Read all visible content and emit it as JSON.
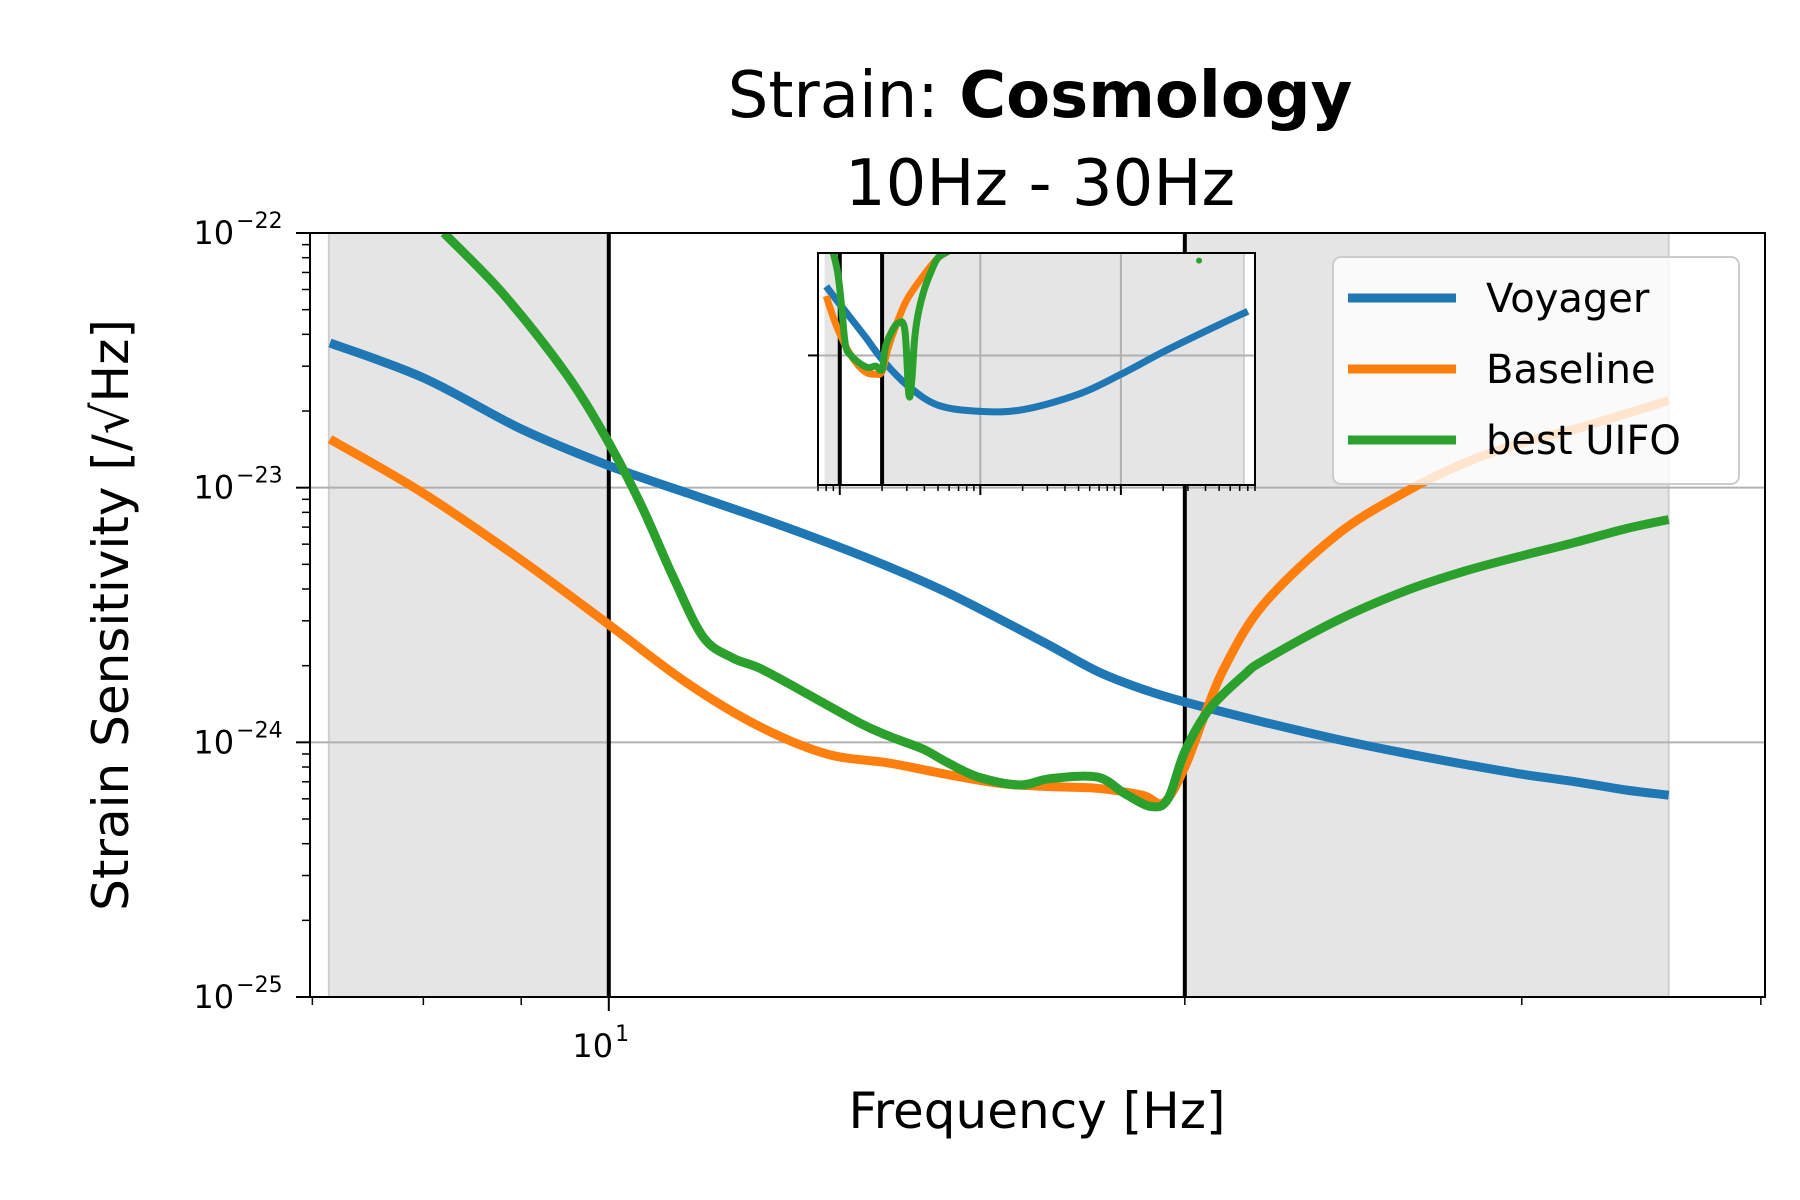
{
  "chart_data": {
    "type": "line",
    "title_prefix": "Strain: ",
    "title_bold": "Cosmology",
    "subtitle": "10Hz - 30Hz",
    "xlabel": "Frequency [Hz]",
    "ylabel": "Strain Sensitivity [/√Hz]",
    "xscale": "log",
    "yscale": "log",
    "xlim": [
      6.98,
      40.2
    ],
    "ylim": [
      1e-25,
      1e-22
    ],
    "x_ticks": [
      {
        "value": 10,
        "base": "10",
        "exp": "1"
      }
    ],
    "y_ticks": [
      {
        "value": 1e-22,
        "base": "10",
        "exp": "−22"
      },
      {
        "value": 1e-23,
        "base": "10",
        "exp": "−23"
      },
      {
        "value": 1e-24,
        "base": "10",
        "exp": "−24"
      },
      {
        "value": 1e-25,
        "base": "10",
        "exp": "−25"
      }
    ],
    "grid": "horizontal major lines",
    "legend_placement": "top-right",
    "shaded_regions": [
      [
        7.14,
        10.0
      ],
      [
        20.0,
        35.8
      ]
    ],
    "vertical_lines": [
      10.0,
      20.0
    ],
    "colors": {
      "voyager": "#1f77b4",
      "baseline": "#ff7f0e",
      "uifo": "#2ca02c",
      "shade": "#e5e5e5"
    },
    "series": [
      {
        "name": "Voyager",
        "color": "#1f77b4",
        "x": [
          7.15,
          8,
          9,
          10,
          11,
          12,
          13,
          14,
          15,
          16,
          17,
          18,
          19,
          20,
          22,
          24,
          26,
          28,
          30,
          32,
          34,
          35.8
        ],
        "y": [
          3.7e-23,
          2.7e-23,
          1.7e-23,
          1.22e-23,
          9.5e-24,
          7.6e-24,
          6.1e-24,
          4.9e-24,
          3.9e-24,
          3.05e-24,
          2.4e-24,
          1.9e-24,
          1.62e-24,
          1.44e-24,
          1.2e-24,
          1.03e-24,
          9.1e-25,
          8.2e-25,
          7.5e-25,
          7e-25,
          6.5e-25,
          6.2e-25
        ]
      },
      {
        "name": "Baseline",
        "color": "#ff7f0e",
        "x": [
          7.15,
          8,
          9,
          10,
          11,
          12,
          13,
          14,
          15,
          16,
          17,
          18,
          19,
          19.5,
          20,
          20.5,
          21,
          22,
          24,
          26,
          28,
          30,
          32,
          34,
          35.8
        ],
        "y": [
          1.55e-23,
          9.5e-24,
          5.2e-24,
          2.9e-24,
          1.7e-24,
          1.15e-24,
          9e-25,
          8.3e-25,
          7.5e-25,
          6.9e-25,
          6.7e-25,
          6.6e-25,
          6.2e-25,
          5.8e-25,
          8e-25,
          1.3e-24,
          2e-24,
          3.5e-24,
          6.5e-24,
          9.5e-24,
          1.25e-23,
          1.5e-23,
          1.7e-23,
          1.95e-23,
          2.2e-23
        ]
      },
      {
        "name": "best UIFO",
        "color": "#2ca02c",
        "x": [
          8.2,
          8.8,
          9.5,
          10,
          10.4,
          10.8,
          11.2,
          11.6,
          12,
          12.6,
          13.5,
          14,
          14.6,
          15,
          15.6,
          16.4,
          17,
          18,
          18.6,
          19.2,
          19.6,
          20,
          20.6,
          21.5,
          22,
          24,
          26,
          28,
          30,
          32,
          34,
          35.8
        ],
        "y": [
          1e-22,
          5.8e-23,
          2.8e-23,
          1.5e-23,
          8.5e-24,
          4.5e-24,
          2.6e-24,
          2.15e-24,
          1.95e-24,
          1.6e-24,
          1.2e-24,
          1.06e-24,
          9.4e-25,
          8.4e-25,
          7.3e-25,
          6.8e-25,
          7.2e-25,
          7.3e-25,
          6.3e-25,
          5.6e-25,
          6e-25,
          9.2e-25,
          1.35e-24,
          1.85e-24,
          2.1e-24,
          3e-24,
          3.9e-24,
          4.7e-24,
          5.4e-24,
          6.1e-24,
          6.9e-24,
          7.5e-24
        ]
      }
    ],
    "inset": {
      "type": "line",
      "xscale": "log",
      "yscale": "log",
      "x_ticks_major": [
        10,
        100,
        1000
      ],
      "y_ticks_major": [
        1e-23
      ],
      "xlim": [
        7,
        9000
      ],
      "ylim": [
        3e-25,
        1.6e-22
      ],
      "shaded_regions": [
        [
          7.8,
          10
        ],
        [
          20,
          7500
        ]
      ],
      "vertical_lines": [
        10,
        20
      ],
      "series": [
        {
          "name": "Voyager",
          "color": "#1f77b4",
          "x": [
            8,
            10,
            15,
            20,
            30,
            50,
            100,
            200,
            500,
            1000,
            2000,
            5000,
            8000
          ],
          "y": [
            6.5e-23,
            4e-23,
            1.7e-23,
            9e-24,
            4.5e-24,
            2.6e-24,
            2.2e-24,
            2.3e-24,
            3.5e-24,
            6e-24,
            1.1e-23,
            2.3e-23,
            3.3e-23
          ]
        },
        {
          "name": "Baseline",
          "color": "#ff7f0e",
          "x": [
            8,
            9,
            10,
            12,
            15,
            18,
            20,
            22,
            25,
            30,
            40,
            50,
            60
          ],
          "y": [
            5e-23,
            2.8e-23,
            1.8e-23,
            1e-23,
            6.5e-24,
            6e-24,
            6.5e-24,
            1.2e-23,
            2.2e-23,
            4.5e-23,
            9e-23,
            1.4e-22,
            1.7e-22
          ]
        },
        {
          "name": "best UIFO",
          "color": "#2ca02c",
          "x": [
            9,
            9.6,
            10,
            10.4,
            11,
            12,
            14,
            16,
            18,
            20,
            21,
            23,
            26,
            29,
            31,
            32.5,
            34,
            36,
            40,
            45,
            50,
            60
          ],
          "y": [
            1.6e-22,
            1e-22,
            6e-23,
            3.2e-23,
            1.3e-23,
            1e-23,
            8e-24,
            7.2e-24,
            7.5e-24,
            6.8e-24,
            1.2e-23,
            1.8e-23,
            2.4e-23,
            2e-23,
            3.5e-24,
            5e-24,
            1.5e-23,
            3e-23,
            6e-23,
            1e-22,
            1.4e-22,
            1.7e-22
          ]
        }
      ]
    }
  }
}
